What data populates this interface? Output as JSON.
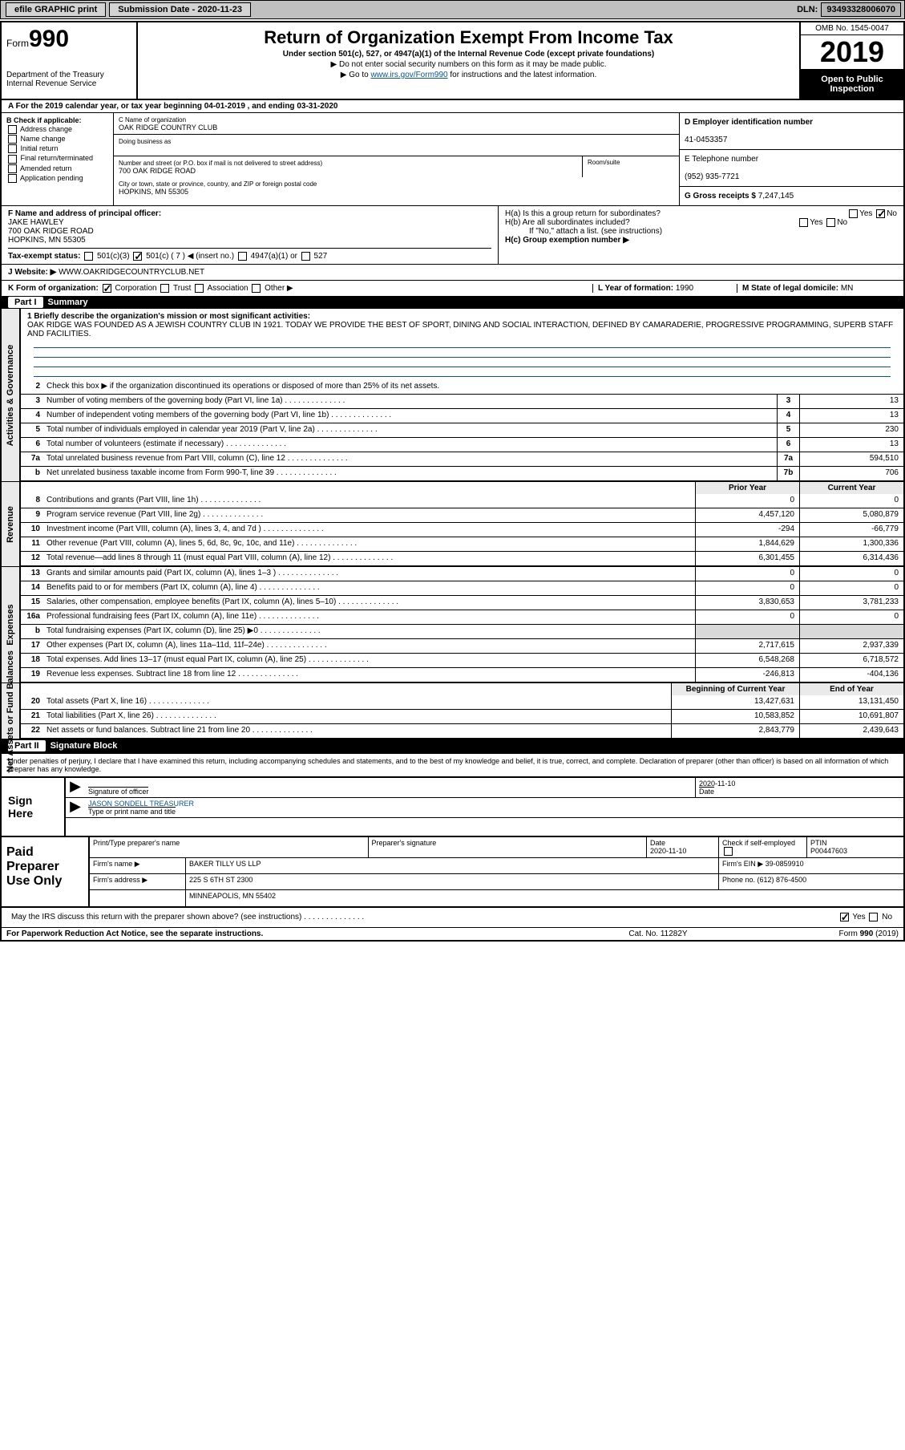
{
  "topbar": {
    "efile": "efile GRAPHIC print",
    "sub_label": "Submission Date - ",
    "sub_date": "2020-11-23",
    "dln_label": "DLN: ",
    "dln": "93493328006070"
  },
  "header": {
    "form_label": "Form",
    "form_no": "990",
    "dept": "Department of the Treasury",
    "irs": "Internal Revenue Service",
    "title": "Return of Organization Exempt From Income Tax",
    "und": "Under section 501(c), 527, or 4947(a)(1) of the Internal Revenue Code (except private foundations)",
    "ssn": "▶ Do not enter social security numbers on this form as it may be made public.",
    "goto": "▶ Go to ",
    "goto_link": "www.irs.gov/Form990",
    "goto_after": " for instructions and the latest information.",
    "omb": "OMB No. 1545-0047",
    "year": "2019",
    "badge": "Open to Public Inspection"
  },
  "rowA": "A For the 2019 calendar year, or tax year beginning 04-01-2019     , and ending 03-31-2020",
  "B": {
    "label": "B Check if applicable:",
    "items": [
      "Address change",
      "Name change",
      "Initial return",
      "Final return/terminated",
      "Amended return",
      "Application pending"
    ]
  },
  "C": {
    "name_lbl": "C Name of organization",
    "name": "OAK RIDGE COUNTRY CLUB",
    "dba_lbl": "Doing business as",
    "street_lbl": "Number and street (or P.O. box if mail is not delivered to street address)",
    "room_lbl": "Room/suite",
    "street": "700 OAK RIDGE ROAD",
    "city_lbl": "City or town, state or province, country, and ZIP or foreign postal code",
    "city": "HOPKINS, MN  55305"
  },
  "D": {
    "lbl": "D Employer identification number",
    "val": "41-0453357"
  },
  "E": {
    "lbl": "E Telephone number",
    "val": "(952) 935-7721"
  },
  "G": {
    "lbl": "G Gross receipts $ ",
    "val": "7,247,145"
  },
  "F": {
    "lbl": "F  Name and address of principal officer:",
    "name": "JAKE HAWLEY",
    "addr1": "700 OAK RIDGE ROAD",
    "addr2": "HOPKINS, MN  55305"
  },
  "H": {
    "a": "H(a)  Is this a group return for subordinates?",
    "b": "H(b)  Are all subordinates included?",
    "note": "If \"No,\" attach a list. (see instructions)",
    "c": "H(c)  Group exemption number ▶"
  },
  "I": {
    "lbl": "Tax-exempt status:",
    "o1": "501(c)(3)",
    "o2": "501(c) ( 7 ) ◀ (insert no.)",
    "o3": "4947(a)(1) or",
    "o4": "527"
  },
  "J": {
    "lbl": "J   Website: ▶  ",
    "val": "WWW.OAKRIDGECOUNTRYCLUB.NET"
  },
  "K": {
    "lbl": "K Form of organization:",
    "corp": "Corporation",
    "trust": "Trust",
    "assoc": "Association",
    "other": "Other ▶"
  },
  "L": {
    "lbl": "L Year of formation: ",
    "val": "1990"
  },
  "M": {
    "lbl": "M State of legal domicile: ",
    "val": "MN"
  },
  "partI": {
    "label": "Part I",
    "title": "Summary"
  },
  "summary": {
    "q1": "1  Briefly describe the organization's mission or most significant activities:",
    "mission": "OAK RIDGE WAS FOUNDED AS A JEWISH COUNTRY CLUB IN 1921. TODAY WE PROVIDE THE BEST OF SPORT, DINING AND SOCIAL INTERACTION, DEFINED BY CAMARADERIE, PROGRESSIVE PROGRAMMING, SUPERB STAFF AND FACILITIES.",
    "q2": "Check this box ▶       if the organization discontinued its operations or disposed of more than 25% of its net assets.",
    "lines": [
      {
        "n": "3",
        "t": "Number of voting members of the governing body (Part VI, line 1a)",
        "b": "3",
        "v": "13"
      },
      {
        "n": "4",
        "t": "Number of independent voting members of the governing body (Part VI, line 1b)",
        "b": "4",
        "v": "13"
      },
      {
        "n": "5",
        "t": "Total number of individuals employed in calendar year 2019 (Part V, line 2a)",
        "b": "5",
        "v": "230"
      },
      {
        "n": "6",
        "t": "Total number of volunteers (estimate if necessary)",
        "b": "6",
        "v": "13"
      },
      {
        "n": "7a",
        "t": "Total unrelated business revenue from Part VIII, column (C), line 12",
        "b": "7a",
        "v": "594,510"
      },
      {
        "n": "b",
        "t": "Net unrelated business taxable income from Form 990-T, line 39",
        "b": "7b",
        "v": "706"
      }
    ],
    "hdrPrior": "Prior Year",
    "hdrCurr": "Current Year",
    "rev": [
      {
        "n": "8",
        "t": "Contributions and grants (Part VIII, line 1h)",
        "p": "0",
        "c": "0"
      },
      {
        "n": "9",
        "t": "Program service revenue (Part VIII, line 2g)",
        "p": "4,457,120",
        "c": "5,080,879"
      },
      {
        "n": "10",
        "t": "Investment income (Part VIII, column (A), lines 3, 4, and 7d )",
        "p": "-294",
        "c": "-66,779"
      },
      {
        "n": "11",
        "t": "Other revenue (Part VIII, column (A), lines 5, 6d, 8c, 9c, 10c, and 11e)",
        "p": "1,844,629",
        "c": "1,300,336"
      },
      {
        "n": "12",
        "t": "Total revenue—add lines 8 through 11 (must equal Part VIII, column (A), line 12)",
        "p": "6,301,455",
        "c": "6,314,436"
      }
    ],
    "exp": [
      {
        "n": "13",
        "t": "Grants and similar amounts paid (Part IX, column (A), lines 1–3 )",
        "p": "0",
        "c": "0"
      },
      {
        "n": "14",
        "t": "Benefits paid to or for members (Part IX, column (A), line 4)",
        "p": "0",
        "c": "0"
      },
      {
        "n": "15",
        "t": "Salaries, other compensation, employee benefits (Part IX, column (A), lines 5–10)",
        "p": "3,830,653",
        "c": "3,781,233"
      },
      {
        "n": "16a",
        "t": "Professional fundraising fees (Part IX, column (A), line 11e)",
        "p": "0",
        "c": "0"
      },
      {
        "n": "b",
        "t": "Total fundraising expenses (Part IX, column (D), line 25) ▶0",
        "p": "",
        "c": "",
        "shade": true
      },
      {
        "n": "17",
        "t": "Other expenses (Part IX, column (A), lines 11a–11d, 11f–24e)",
        "p": "2,717,615",
        "c": "2,937,339"
      },
      {
        "n": "18",
        "t": "Total expenses. Add lines 13–17 (must equal Part IX, column (A), line 25)",
        "p": "6,548,268",
        "c": "6,718,572"
      },
      {
        "n": "19",
        "t": "Revenue less expenses. Subtract line 18 from line 12",
        "p": "-246,813",
        "c": "-404,136"
      }
    ],
    "hdrBeg": "Beginning of Current Year",
    "hdrEnd": "End of Year",
    "net": [
      {
        "n": "20",
        "t": "Total assets (Part X, line 16)",
        "p": "13,427,631",
        "c": "13,131,450"
      },
      {
        "n": "21",
        "t": "Total liabilities (Part X, line 26)",
        "p": "10,583,852",
        "c": "10,691,807"
      },
      {
        "n": "22",
        "t": "Net assets or fund balances. Subtract line 21 from line 20",
        "p": "2,843,779",
        "c": "2,439,643"
      }
    ]
  },
  "partII": {
    "label": "Part II",
    "title": "Signature Block"
  },
  "penalty": "Under penalties of perjury, I declare that I have examined this return, including accompanying schedules and statements, and to the best of my knowledge and belief, it is true, correct, and complete. Declaration of preparer (other than officer) is based on all information of which preparer has any knowledge.",
  "sign": {
    "here": "Sign Here",
    "sig_lbl": "Signature of officer",
    "date": "2020-11-10",
    "date_lbl": "Date",
    "name": "JASON SONDELL TREASURER",
    "name_lbl": "Type or print name and title"
  },
  "paid": {
    "lbl": "Paid Preparer Use Only",
    "h1": "Print/Type preparer's name",
    "h2": "Preparer's signature",
    "h3": "Date",
    "h3v": "2020-11-10",
    "h4": "Check       if self-employed",
    "h5": "PTIN",
    "h5v": "P00447603",
    "firm_lbl": "Firm's name     ▶",
    "firm": "BAKER TILLY US LLP",
    "ein_lbl": "Firm's EIN ▶ ",
    "ein": "39-0859910",
    "addr_lbl": "Firm's address ▶",
    "addr1": "225 S 6TH ST 2300",
    "addr2": "MINNEAPOLIS, MN  55402",
    "phone_lbl": "Phone no. ",
    "phone": "(612) 876-4500"
  },
  "discuss": "May the IRS discuss this return with the preparer shown above? (see instructions)",
  "foot": {
    "l": "For Paperwork Reduction Act Notice, see the separate instructions.",
    "m": "Cat. No. 11282Y",
    "r": "Form 990 (2019)"
  }
}
